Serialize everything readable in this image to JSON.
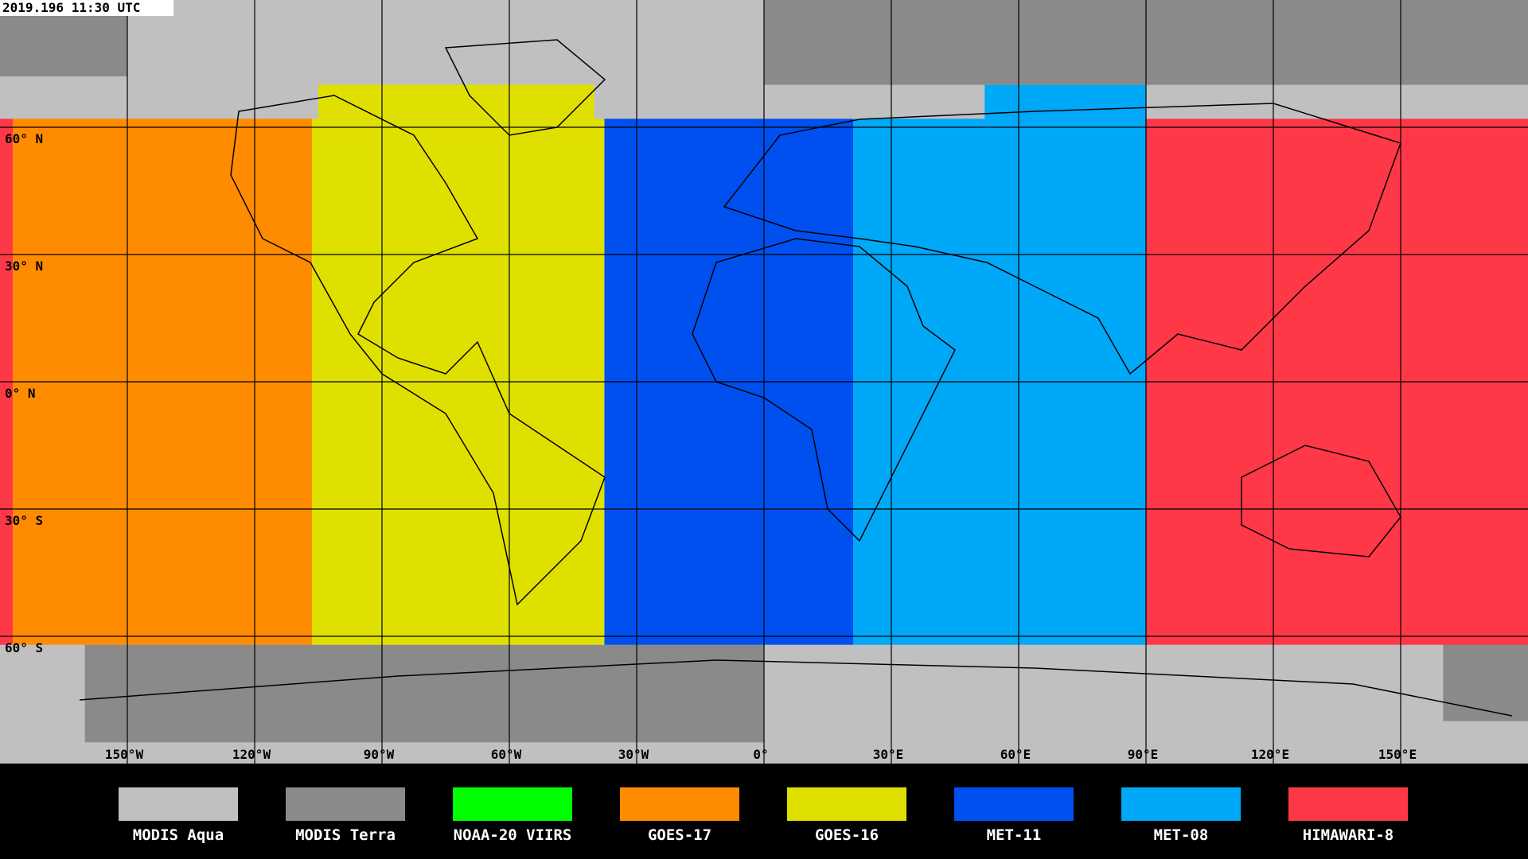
{
  "timestamp": "2019.196 11:30 UTC",
  "lat_labels": [
    "60° N",
    "30° N",
    "0° N",
    "30° S",
    "60° S"
  ],
  "lon_labels": [
    "150°W",
    "120°W",
    "90°W",
    "60°W",
    "30°W",
    "0°",
    "30°E",
    "60°E",
    "90°E",
    "120°E",
    "150°E"
  ],
  "legend": [
    {
      "name": "MODIS Aqua",
      "color": "#c0c0c0"
    },
    {
      "name": "MODIS Terra",
      "color": "#8a8a8a"
    },
    {
      "name": "NOAA-20 VIIRS",
      "color": "#00ff00"
    },
    {
      "name": "GOES-17",
      "color": "#ff8c00"
    },
    {
      "name": "GOES-16",
      "color": "#e0e000"
    },
    {
      "name": "MET-11",
      "color": "#0050f0"
    },
    {
      "name": "MET-08",
      "color": "#00a8f8"
    },
    {
      "name": "HIMAWARI-8",
      "color": "#ff3848"
    }
  ]
}
